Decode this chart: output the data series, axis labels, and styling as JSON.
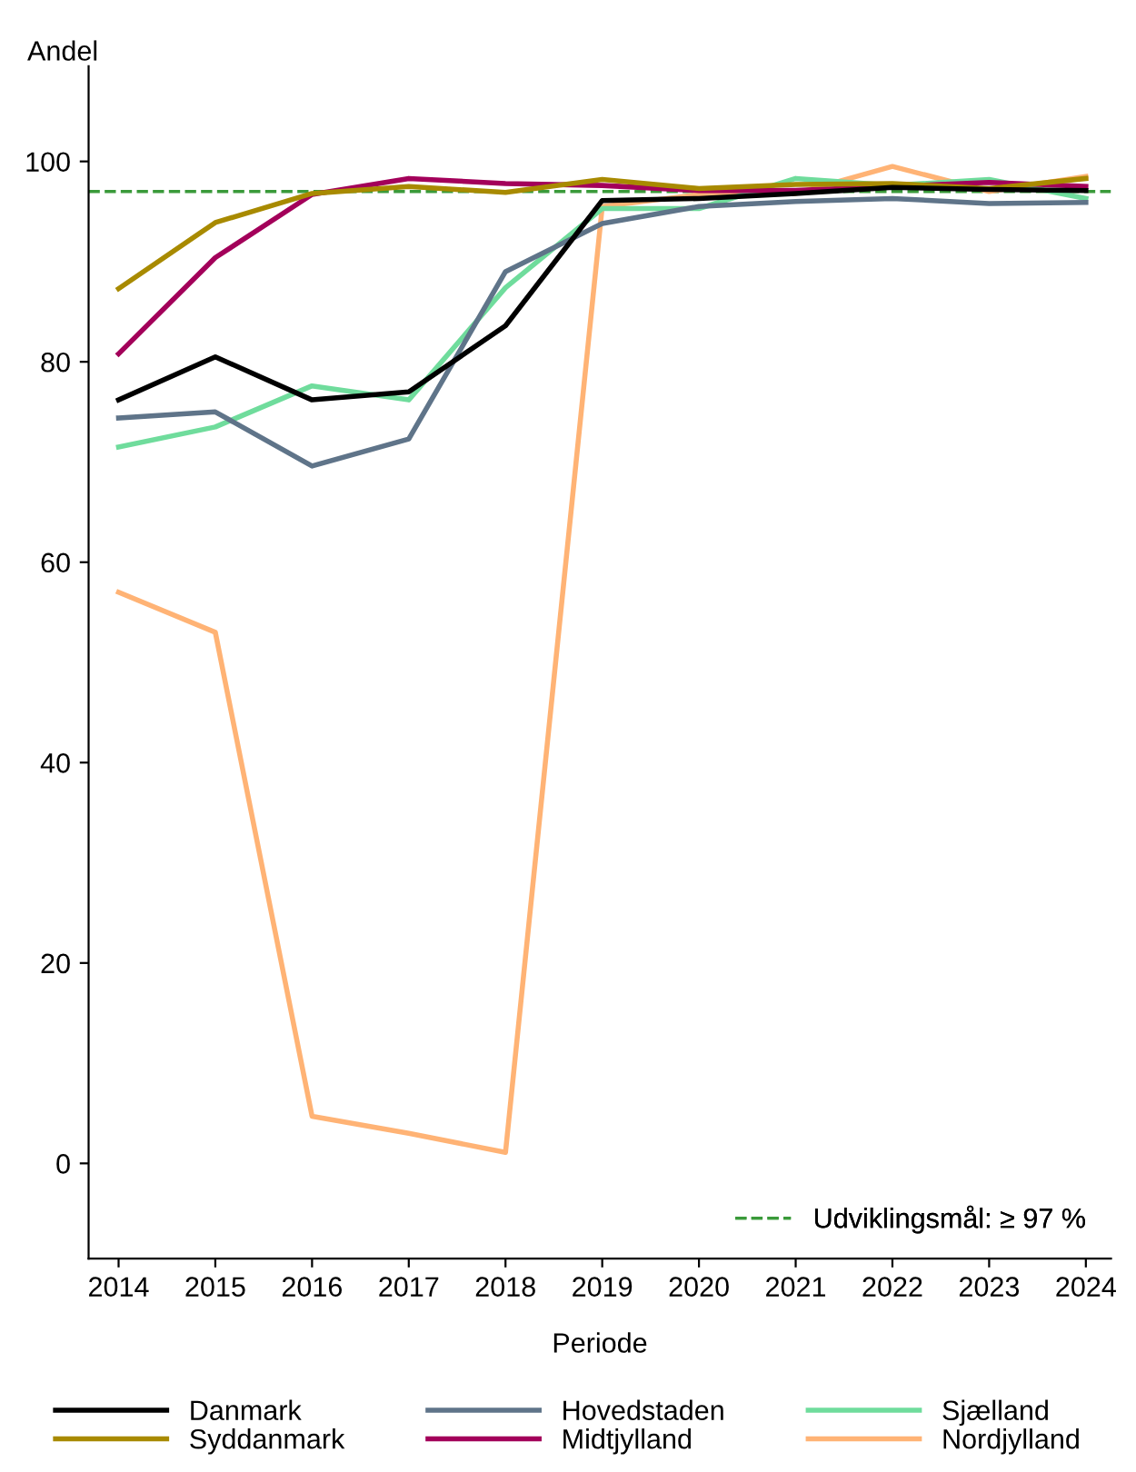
{
  "chart_data": {
    "type": "line",
    "ylabel": "Andel",
    "xlabel": "Periode",
    "x": [
      2014,
      2015,
      2016,
      2017,
      2018,
      2019,
      2020,
      2021,
      2022,
      2023,
      2024
    ],
    "xlim": [
      2013.69,
      2024.26
    ],
    "xticks": [
      2014,
      2015,
      2016,
      2017,
      2018,
      2019,
      2020,
      2021,
      2022,
      2023,
      2024
    ],
    "ylim": [
      -9.5,
      109.5
    ],
    "yticks": [
      0,
      20,
      40,
      60,
      80,
      100
    ],
    "series": [
      {
        "name": "Danmark",
        "color": "#000000",
        "values": [
          76.2,
          80.5,
          76.2,
          77.0,
          83.6,
          96.1,
          96.3,
          96.8,
          97.4,
          97.2,
          97.1
        ]
      },
      {
        "name": "Syddanmark",
        "color": "#a88a00",
        "values": [
          87.3,
          93.9,
          96.8,
          97.5,
          96.9,
          98.2,
          97.3,
          97.7,
          97.8,
          97.3,
          98.3
        ]
      },
      {
        "name": "Hovedstaden",
        "color": "#5f7489",
        "values": [
          74.4,
          75.0,
          69.6,
          72.3,
          89.0,
          93.8,
          95.5,
          96.0,
          96.3,
          95.8,
          95.9
        ]
      },
      {
        "name": "Midtjylland",
        "color": "#a3005a",
        "values": [
          80.8,
          90.4,
          96.7,
          98.3,
          97.8,
          97.6,
          97.1,
          97.1,
          97.5,
          97.9,
          97.5
        ]
      },
      {
        "name": "Sjælland",
        "color": "#6fdc9c",
        "values": [
          71.5,
          73.5,
          77.6,
          76.2,
          87.4,
          95.3,
          95.3,
          98.3,
          97.6,
          98.2,
          96.3
        ]
      },
      {
        "name": "Nordjylland",
        "color": "#ffb375",
        "values": [
          57.0,
          53.0,
          4.7,
          3.0,
          1.1,
          95.5,
          96.7,
          96.8,
          99.5,
          97.0,
          98.5
        ]
      }
    ],
    "ref_lines": [
      {
        "axis": "y",
        "value": 97,
        "label": "Udviklingsmål: ≥ 97 %",
        "color": "#3a9a3a",
        "line_style": "dashed"
      }
    ],
    "legend": "bottom",
    "grid": false,
    "marker": "none",
    "line_style": "solid"
  }
}
